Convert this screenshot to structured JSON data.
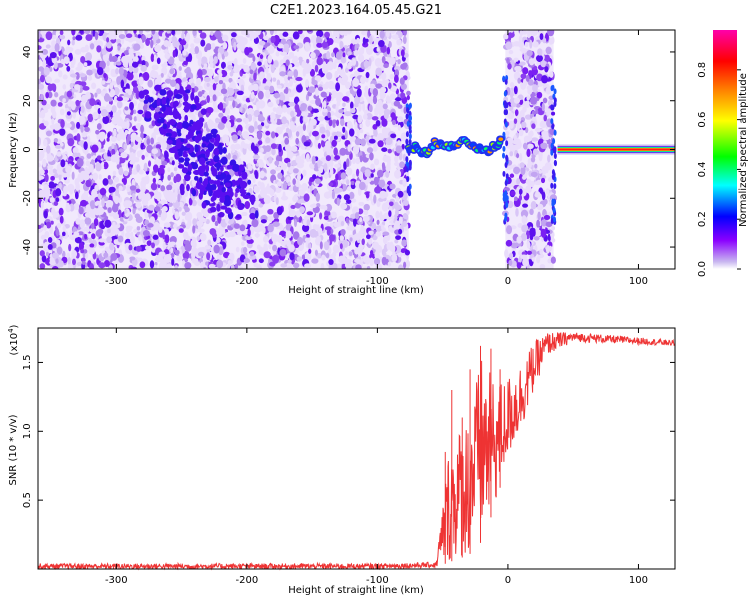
{
  "title": "C2E1.2023.164.05.45.G21",
  "chart_data": [
    {
      "type": "heatmap",
      "xlabel": "Height of straight line (km)",
      "ylabel": "Frequency (Hz)",
      "xlim": [
        -360,
        128
      ],
      "ylim": [
        -49,
        49
      ],
      "xticks": [
        -300,
        -200,
        -100,
        0,
        100
      ],
      "yticks": [
        -40,
        -20,
        0,
        20,
        40
      ],
      "grid": false,
      "noise_regions": [
        [
          -360,
          -76
        ],
        [
          -2,
          35
        ]
      ],
      "diagonal_band": {
        "from": [
          -265,
          22
        ],
        "to": [
          -210,
          -22
        ]
      },
      "ridge": [
        {
          "x": -76,
          "y": 0
        },
        {
          "x": -70,
          "y": 1
        },
        {
          "x": -62,
          "y": -2
        },
        {
          "x": -55,
          "y": 3
        },
        {
          "x": -45,
          "y": 2
        },
        {
          "x": -35,
          "y": 3
        },
        {
          "x": -25,
          "y": 1
        },
        {
          "x": -15,
          "y": 0
        },
        {
          "x": -8,
          "y": 2
        },
        {
          "x": -5,
          "y": 6
        }
      ],
      "stable_line": {
        "x_start": 38,
        "x_end": 128,
        "y": 0,
        "amplitude": 0.9
      },
      "colorbar": {
        "label": "Normalized spectral amplitude",
        "min": 0.0,
        "max": 0.96,
        "ticks": [
          "0.0",
          "0.2",
          "0.4",
          "0.6",
          "0.8"
        ],
        "colors": [
          "#ffffff",
          "#8b00ff",
          "#0000ff",
          "#00ffff",
          "#00ff00",
          "#ffff00",
          "#ff8000",
          "#ff0000",
          "#ff00aa"
        ]
      }
    },
    {
      "type": "line",
      "xlabel": "Height of straight line (km)",
      "ylabel": "SNR (10 * v/v)",
      "multiplier": "(x10",
      "multiplier_exp": "4",
      "multiplier_close": ")",
      "xlim": [
        -360,
        128
      ],
      "ylim": [
        0,
        1.75
      ],
      "xticks": [
        -300,
        -200,
        -100,
        0,
        100
      ],
      "yticks": [
        "0.5",
        "1.0",
        "1.5"
      ],
      "grid": false,
      "series": [
        {
          "color": "#ee3333",
          "envelope": [
            {
              "x": -360,
              "low": 0.0,
              "high": 0.04
            },
            {
              "x": -100,
              "low": 0.0,
              "high": 0.04
            },
            {
              "x": -55,
              "low": 0.01,
              "high": 0.05
            },
            {
              "x": -45,
              "low": 0.05,
              "high": 0.9
            },
            {
              "x": -30,
              "low": 0.1,
              "high": 1.15
            },
            {
              "x": -20,
              "low": 0.2,
              "high": 1.55
            },
            {
              "x": -10,
              "low": 0.45,
              "high": 1.35
            },
            {
              "x": 0,
              "low": 0.8,
              "high": 1.4
            },
            {
              "x": 10,
              "low": 1.0,
              "high": 1.5
            },
            {
              "x": 20,
              "low": 1.3,
              "high": 1.65
            },
            {
              "x": 30,
              "low": 1.55,
              "high": 1.72
            },
            {
              "x": 50,
              "low": 1.65,
              "high": 1.72
            },
            {
              "x": 128,
              "low": 1.62,
              "high": 1.66
            }
          ],
          "spikes": [
            {
              "x": -48,
              "y": 0.85
            },
            {
              "x": -43,
              "y": 1.3
            },
            {
              "x": -35,
              "y": 1.1
            },
            {
              "x": -29,
              "y": 1.45
            },
            {
              "x": -21,
              "y": 1.62
            },
            {
              "x": -13,
              "y": 1.6
            },
            {
              "x": -6,
              "y": 1.45
            }
          ]
        }
      ]
    }
  ]
}
